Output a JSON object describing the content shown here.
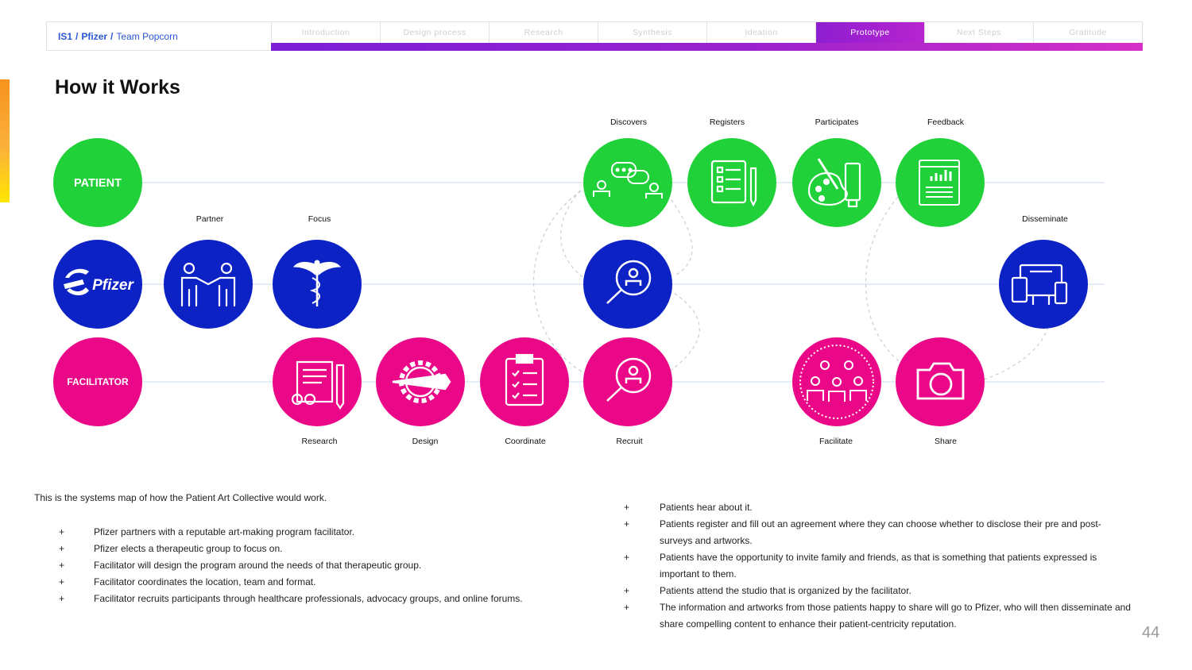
{
  "header": {
    "breadcrumb": {
      "part1": "IS1",
      "part2": "Pfizer",
      "part3": "Team Popcorn",
      "separator": "/"
    },
    "tabs": [
      {
        "label": "Introduction",
        "active": false
      },
      {
        "label": "Design process",
        "active": false
      },
      {
        "label": "Research",
        "active": false
      },
      {
        "label": "Synthesis",
        "active": false
      },
      {
        "label": "Ideation",
        "active": false
      },
      {
        "label": "Prototype",
        "active": true
      },
      {
        "label": "Next Steps",
        "active": false
      },
      {
        "label": "Gratitude",
        "active": false
      }
    ]
  },
  "page_title": "How it Works",
  "colors": {
    "green": "#21d13a",
    "blue": "#0c22c4",
    "pink": "#ea0888",
    "line": "#dde5f2",
    "accent": "#8d1ed0"
  },
  "diagram": {
    "rows": {
      "patient": {
        "label": "PATIENT"
      },
      "pfizer": {
        "label": "Pfizer"
      },
      "facilitator": {
        "label": "FACILITATOR"
      }
    },
    "nodes": [
      {
        "id": "partner",
        "caption": "Partner",
        "icon": "handshake-icon"
      },
      {
        "id": "focus",
        "caption": "Focus",
        "icon": "caduceus-icon"
      },
      {
        "id": "research",
        "caption": "Research",
        "icon": "document-glasses-icon"
      },
      {
        "id": "design",
        "caption": "Design",
        "icon": "gear-pencil-icon"
      },
      {
        "id": "coordinate",
        "caption": "Coordinate",
        "icon": "clipboard-checklist-icon"
      },
      {
        "id": "discovers",
        "caption": "Discovers",
        "icon": "people-chat-icon"
      },
      {
        "id": "pfizer-search",
        "caption": "",
        "icon": "magnifier-person-icon"
      },
      {
        "id": "recruit",
        "caption": "Recruit",
        "icon": "magnifier-person-icon"
      },
      {
        "id": "registers",
        "caption": "Registers",
        "icon": "form-pen-icon"
      },
      {
        "id": "participates",
        "caption": "Participates",
        "icon": "palette-brush-icon"
      },
      {
        "id": "feedback",
        "caption": "Feedback",
        "icon": "report-chart-icon"
      },
      {
        "id": "facilitate",
        "caption": "Facilitate",
        "icon": "group-circle-icon"
      },
      {
        "id": "share",
        "caption": "Share",
        "icon": "camera-icon"
      },
      {
        "id": "disseminate",
        "caption": "Disseminate",
        "icon": "devices-icon"
      }
    ]
  },
  "description": "This is the systems map of how the Patient Art Collective would work.",
  "bullet_marker": "+",
  "left_bullets": [
    "Pfizer partners with a reputable art-making program  facilitator.",
    "Pfizer elects a therapeutic group to focus on.",
    "Facilitator will design the program around the needs of that therapeutic group.",
    "Facilitator coordinates the location, team and format.",
    "Facilitator recruits participants through healthcare professionals, advocacy groups, and online forums."
  ],
  "right_bullets": [
    "Patients hear about it.",
    "Patients register and fill out an agreement where they can choose whether to disclose their pre and post-surveys and artworks.",
    "Patients have the opportunity to invite family and friends, as that is something that patients expressed is important to them.",
    "Patients attend the studio that is organized by the facilitator.",
    "The information and artworks from those patients happy to share will go to Pfizer, who will then disseminate and share compelling content to enhance their patient-centricity reputation."
  ],
  "page_number": "44"
}
